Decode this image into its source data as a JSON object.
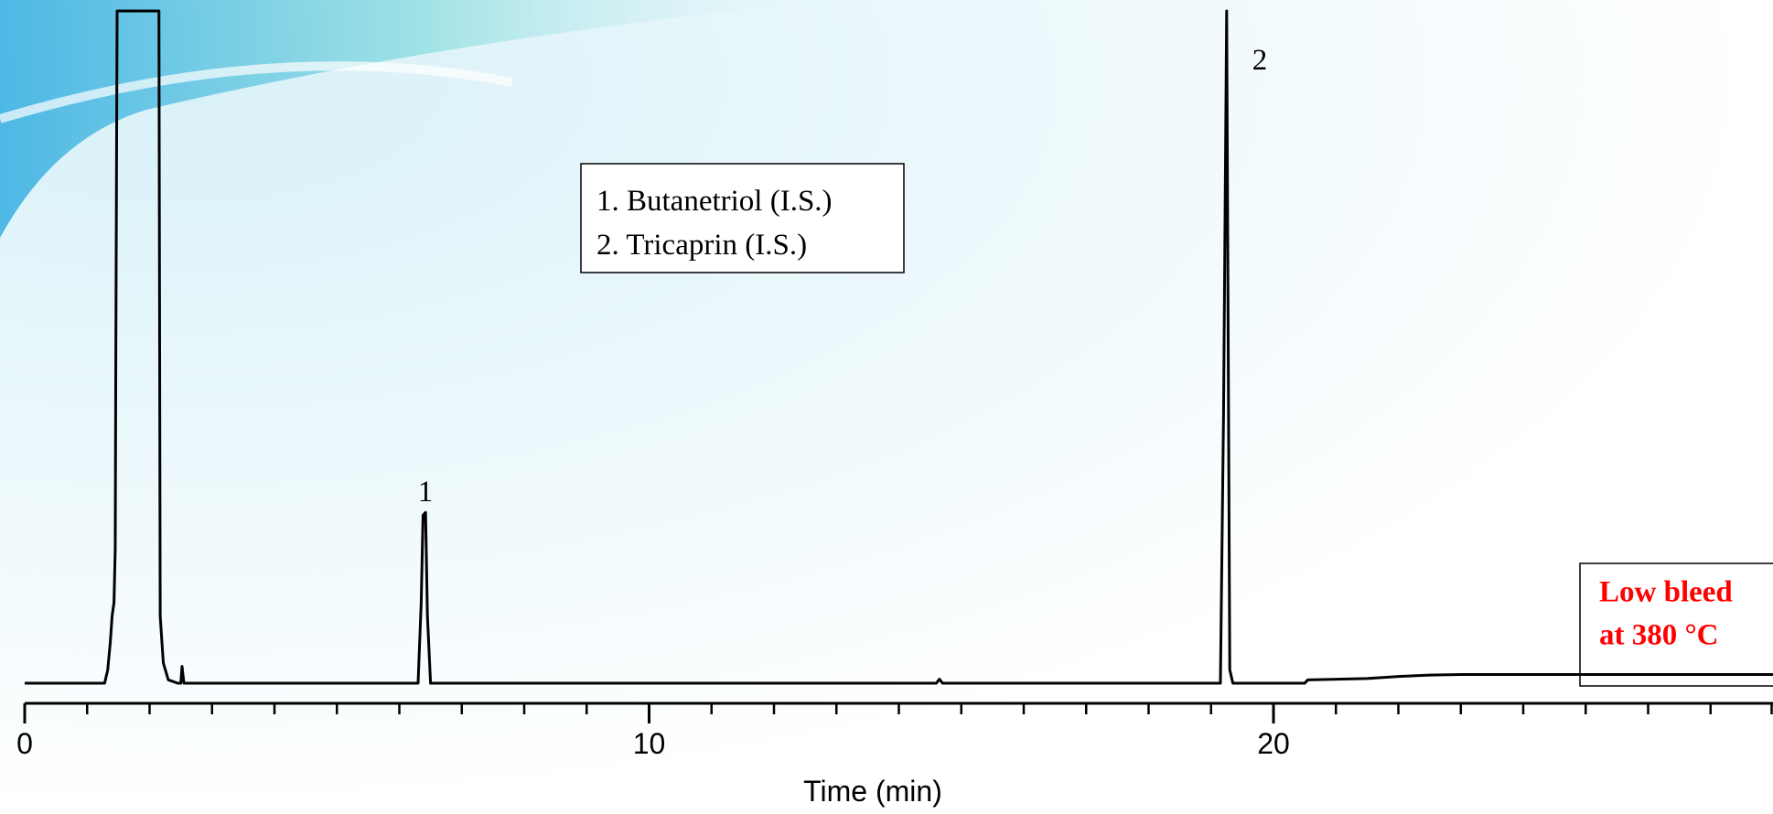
{
  "chart_data": {
    "type": "line",
    "xlabel": "Time (min)",
    "x": [
      0,
      1.28,
      1.33,
      1.37,
      1.4,
      1.43,
      1.45,
      1.46,
      1.48,
      2.15,
      2.17,
      2.22,
      2.3,
      2.45,
      2.5,
      2.52,
      2.55,
      3.3,
      6.3,
      6.35,
      6.38,
      6.42,
      6.45,
      6.5,
      14.6,
      14.65,
      14.7,
      19.15,
      19.2,
      19.25,
      19.27,
      19.3,
      19.35,
      20.5,
      20.55,
      21.5,
      22,
      22.5,
      23,
      28
    ],
    "values": [
      0,
      0,
      2,
      6,
      10,
      12,
      20,
      50,
      100,
      100,
      10,
      3,
      0.5,
      0,
      0,
      2.5,
      0,
      0,
      0,
      12,
      25,
      25.4,
      10,
      0,
      0,
      0.6,
      0,
      0,
      40,
      100,
      60,
      2,
      0,
      0,
      0.5,
      0.7,
      1,
      1.2,
      1.3,
      1.3
    ],
    "color": "#000000",
    "xlim": [
      0,
      28
    ],
    "ylim": [
      0,
      100
    ],
    "xticks": [
      0,
      10,
      20
    ],
    "xminor_ticks": [
      1,
      2,
      3,
      4,
      5,
      6,
      7,
      8,
      9,
      11,
      12,
      13,
      14,
      15,
      16,
      17,
      18,
      19,
      21,
      22,
      23,
      24,
      25,
      26,
      27,
      28
    ],
    "peak_labels": [
      "1",
      "2"
    ],
    "legend": [
      "1. Butanetriol (I.S.)",
      "2. Tricaprin (I.S.)"
    ],
    "note": [
      "Low bleed",
      "at 380 °C"
    ],
    "note_color": "#ff0000"
  }
}
